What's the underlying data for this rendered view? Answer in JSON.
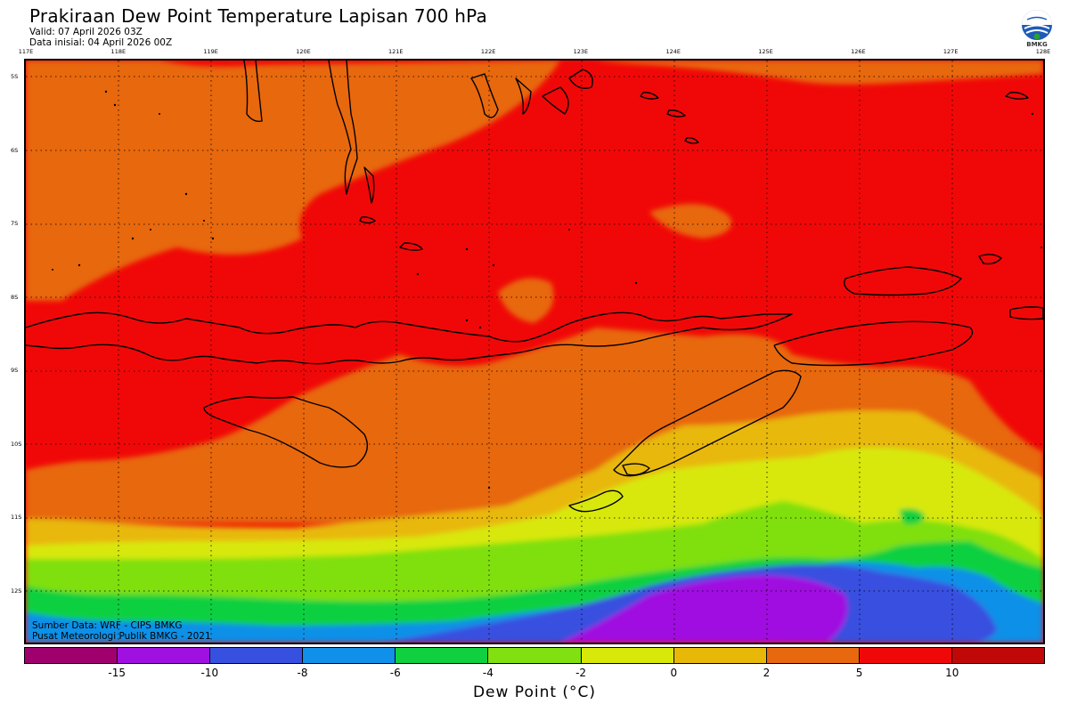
{
  "header": {
    "title": "Prakiraan Dew Point Temperature Lapisan 700 hPa",
    "valid": "Valid: 07 April 2026 03Z",
    "initial": "Data inisial: 04 April 2026 00Z"
  },
  "logo": {
    "text": "BMKG",
    "icon": "bmkg-logo-icon"
  },
  "axes": {
    "lon_labels": [
      "117E",
      "118E",
      "119E",
      "120E",
      "121E",
      "122E",
      "123E",
      "124E",
      "125E",
      "126E",
      "127E",
      "128E"
    ],
    "lat_labels": [
      "5S",
      "6S",
      "7S",
      "8S",
      "9S",
      "10S",
      "11S",
      "12S"
    ]
  },
  "footer": {
    "source": "Sumber Data: WRF - CIPS BMKG",
    "publisher": "Pusat Meteorologi Publik BMKG - 2021"
  },
  "colorbar": {
    "colors": [
      "#a0006e",
      "#a010e0",
      "#3850e0",
      "#1090e8",
      "#10d040",
      "#80e010",
      "#d8e808",
      "#e8b808",
      "#e86810",
      "#f00808",
      "#c00808"
    ],
    "ticks": [
      "-15",
      "-10",
      "-8",
      "-6",
      "-4",
      "-2",
      "0",
      "2",
      "5",
      "10"
    ],
    "label": "Dew Point (°C)"
  },
  "map": {
    "type": "filled-contour",
    "variable": "Dew Point Temperature",
    "level": "700 hPa",
    "unit": "°C",
    "lon_range": [
      117,
      128
    ],
    "lat_range": [
      -12.6,
      -4.8
    ],
    "features": [
      "coastlines",
      "graticule"
    ]
  }
}
